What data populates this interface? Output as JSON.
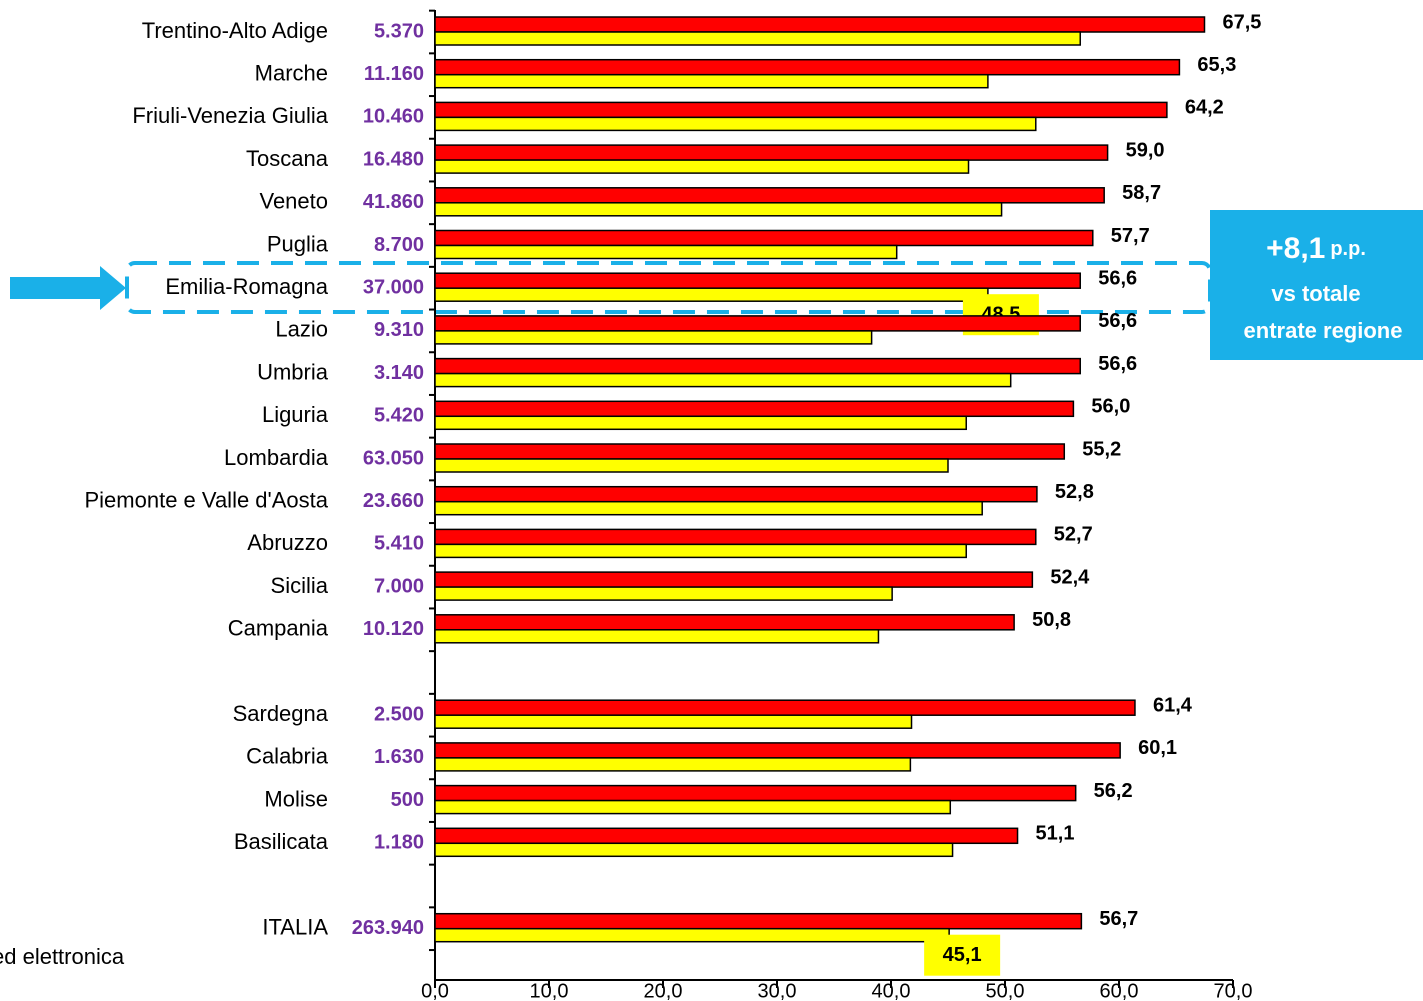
{
  "chart_data": {
    "type": "bar",
    "orientation": "horizontal",
    "categories": [
      "Trentino-Alto Adige",
      "Marche",
      "Friuli-Venezia Giulia",
      "Toscana",
      "Veneto",
      "Puglia",
      "Emilia-Romagna",
      "Lazio",
      "Umbria",
      "Liguria",
      "Lombardia",
      "Piemonte e Valle d'Aosta",
      "Abruzzo",
      "Sicilia",
      "Campania",
      null,
      "Sardegna",
      "Calabria",
      "Molise",
      "Basilicata",
      null,
      "ITALIA"
    ],
    "entries": [
      "5.370",
      "11.160",
      "10.460",
      "16.480",
      "41.860",
      "8.700",
      "37.000",
      "9.310",
      "3.140",
      "5.420",
      "63.050",
      "23.660",
      "5.410",
      "7.000",
      "10.120",
      null,
      "2.500",
      "1.630",
      "500",
      "1.180",
      null,
      "263.940"
    ],
    "series": [
      {
        "color": "#ff0000",
        "values": [
          67.5,
          65.3,
          64.2,
          59.0,
          58.7,
          57.7,
          56.6,
          56.6,
          56.6,
          56.0,
          55.2,
          52.8,
          52.7,
          52.4,
          50.8,
          null,
          61.4,
          60.1,
          56.2,
          51.1,
          null,
          56.7
        ],
        "value_labels": [
          "67,5",
          "65,3",
          "64,2",
          "59,0",
          "58,7",
          "57,7",
          "56,6",
          "56,6",
          "56,6",
          "56,0",
          "55,2",
          "52,8",
          "52,7",
          "52,4",
          "50,8",
          null,
          "61,4",
          "60,1",
          "56,2",
          "51,1",
          null,
          "56,7"
        ]
      },
      {
        "color": "#ffff00",
        "values": [
          56.6,
          48.5,
          52.7,
          46.8,
          49.7,
          40.5,
          48.5,
          38.3,
          50.5,
          46.6,
          45.0,
          48.0,
          46.6,
          40.1,
          38.9,
          null,
          41.8,
          41.7,
          45.2,
          45.4,
          null,
          45.1
        ],
        "value_labels": [
          null,
          null,
          null,
          null,
          null,
          null,
          "48,5",
          null,
          null,
          null,
          null,
          null,
          null,
          null,
          null,
          null,
          null,
          null,
          null,
          null,
          null,
          "45,1"
        ]
      }
    ],
    "xlim": [
      0,
      70
    ],
    "xticks": [
      {
        "value": 0,
        "label": "0,0"
      },
      {
        "value": 10,
        "label": "10,0"
      },
      {
        "value": 20,
        "label": "20,0"
      },
      {
        "value": 30,
        "label": "30,0"
      },
      {
        "value": 40,
        "label": "40,0"
      },
      {
        "value": 50,
        "label": "50,0"
      },
      {
        "value": 60,
        "label": "60,0"
      },
      {
        "value": 70,
        "label": "70,0"
      }
    ],
    "highlight": 6,
    "annotation": {
      "value": "+8,1",
      "unit": "p.p.",
      "line2": "vs totale",
      "line3": "entrate regione"
    },
    "note": "ed elettronica"
  }
}
